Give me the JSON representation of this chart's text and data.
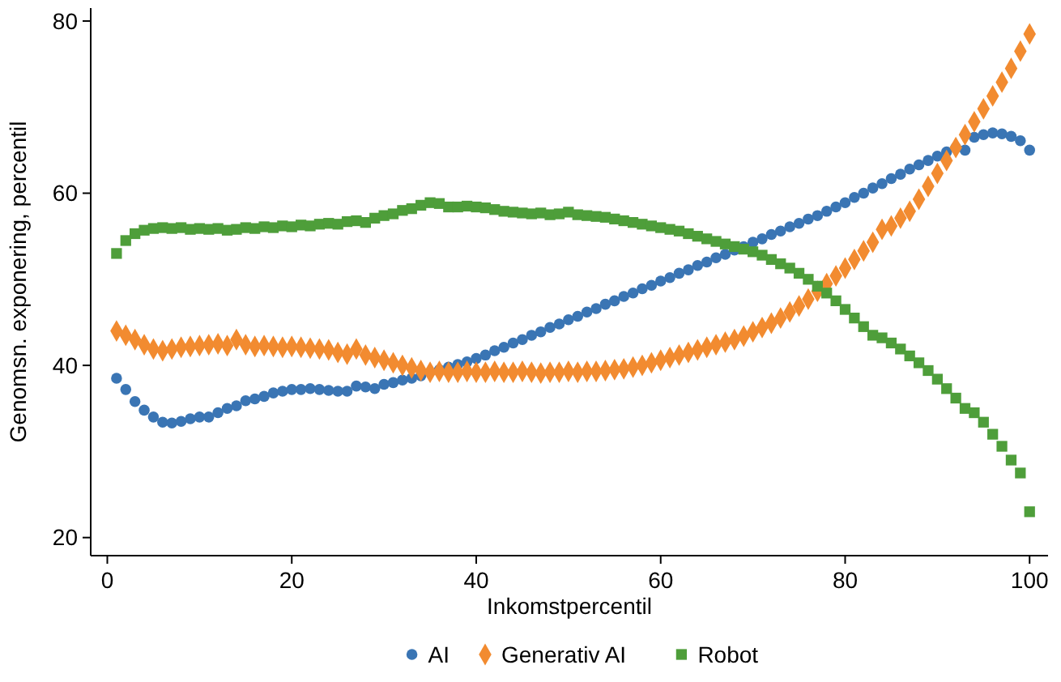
{
  "chart_data": {
    "type": "scatter",
    "xlabel": "Inkomstpercentil",
    "ylabel": "Genomsn. exponering, percentil",
    "x": [
      1,
      2,
      3,
      4,
      5,
      6,
      7,
      8,
      9,
      10,
      11,
      12,
      13,
      14,
      15,
      16,
      17,
      18,
      19,
      20,
      21,
      22,
      23,
      24,
      25,
      26,
      27,
      28,
      29,
      30,
      31,
      32,
      33,
      34,
      35,
      36,
      37,
      38,
      39,
      40,
      41,
      42,
      43,
      44,
      45,
      46,
      47,
      48,
      49,
      50,
      51,
      52,
      53,
      54,
      55,
      56,
      57,
      58,
      59,
      60,
      61,
      62,
      63,
      64,
      65,
      66,
      67,
      68,
      69,
      70,
      71,
      72,
      73,
      74,
      75,
      76,
      77,
      78,
      79,
      80,
      81,
      82,
      83,
      84,
      85,
      86,
      87,
      88,
      89,
      90,
      91,
      92,
      93,
      94,
      95,
      96,
      97,
      98,
      99,
      100
    ],
    "xlim": [
      -1.8,
      102
    ],
    "xticks": [
      0,
      20,
      40,
      60,
      80,
      100
    ],
    "ylim": [
      17.9,
      81.5
    ],
    "yticks": [
      20,
      40,
      60,
      80
    ],
    "grid": false,
    "legend": "bottom",
    "series": [
      {
        "name": "AI",
        "color": "#3a75b4",
        "marker": "circle",
        "values": [
          38.5,
          37.2,
          35.8,
          34.8,
          34.0,
          33.4,
          33.3,
          33.5,
          33.8,
          34.0,
          34.0,
          34.5,
          35.0,
          35.3,
          35.9,
          36.1,
          36.4,
          36.8,
          37.0,
          37.2,
          37.2,
          37.3,
          37.2,
          37.1,
          37.0,
          37.0,
          37.6,
          37.5,
          37.3,
          37.8,
          38.0,
          38.3,
          38.5,
          38.8,
          null,
          39.5,
          39.8,
          40.1,
          40.4,
          40.8,
          41.2,
          41.7,
          42.1,
          42.6,
          43.0,
          43.5,
          43.9,
          44.4,
          44.8,
          45.3,
          45.7,
          46.2,
          46.6,
          47.1,
          47.5,
          48.0,
          48.4,
          48.9,
          49.3,
          49.8,
          50.2,
          50.7,
          51.1,
          51.6,
          52.0,
          52.5,
          52.9,
          53.4,
          53.8,
          54.3,
          54.7,
          55.2,
          55.6,
          56.1,
          56.5,
          57.0,
          57.4,
          57.9,
          58.4,
          58.9,
          59.5,
          60.0,
          60.6,
          61.1,
          61.7,
          62.2,
          62.8,
          63.3,
          63.8,
          64.3,
          64.8,
          65.3,
          65.0,
          66.5,
          66.8,
          67.0,
          66.9,
          66.6,
          66.1,
          65.0
        ]
      },
      {
        "name": "Generativ AI",
        "color": "#f28b30",
        "marker": "diamond",
        "values": [
          44.0,
          43.5,
          43.0,
          42.4,
          41.9,
          41.7,
          41.9,
          42.1,
          42.2,
          42.3,
          42.4,
          42.5,
          42.3,
          43.0,
          42.4,
          42.2,
          42.3,
          42.2,
          42.1,
          42.2,
          42.1,
          42.0,
          41.9,
          41.8,
          41.5,
          41.3,
          41.9,
          41.2,
          40.9,
          40.6,
          40.3,
          40.0,
          39.7,
          39.4,
          39.2,
          39.3,
          39.2,
          39.2,
          39.3,
          39.2,
          39.2,
          39.3,
          39.2,
          39.2,
          39.3,
          39.2,
          39.1,
          39.2,
          39.2,
          39.3,
          39.2,
          39.3,
          39.3,
          39.4,
          39.5,
          39.6,
          39.8,
          40.0,
          40.3,
          40.6,
          40.9,
          41.2,
          41.5,
          41.8,
          42.1,
          42.4,
          42.7,
          43.0,
          43.4,
          43.9,
          44.4,
          44.9,
          45.5,
          46.2,
          46.9,
          47.7,
          48.6,
          49.5,
          50.4,
          51.3,
          52.3,
          53.3,
          54.3,
          55.8,
          56.2,
          57.1,
          57.9,
          59.3,
          60.8,
          62.3,
          63.8,
          65.3,
          66.8,
          68.3,
          69.8,
          71.3,
          72.9,
          74.5,
          76.5,
          78.5
        ]
      },
      {
        "name": "Robot",
        "color": "#4e9e3a",
        "marker": "square",
        "values": [
          53.0,
          54.5,
          55.3,
          55.7,
          55.9,
          56.0,
          55.9,
          56.0,
          55.8,
          55.9,
          55.8,
          55.9,
          55.7,
          55.8,
          56.0,
          55.9,
          56.1,
          56.0,
          56.2,
          56.1,
          56.3,
          56.2,
          56.4,
          56.5,
          56.4,
          56.7,
          56.8,
          56.6,
          57.1,
          57.4,
          57.6,
          58.0,
          58.2,
          58.6,
          58.9,
          58.8,
          58.4,
          58.4,
          58.5,
          58.4,
          58.3,
          58.1,
          57.9,
          57.8,
          57.7,
          57.6,
          57.7,
          57.5,
          57.6,
          57.8,
          57.5,
          57.4,
          57.3,
          57.2,
          57.0,
          56.8,
          56.6,
          56.4,
          56.2,
          56.0,
          55.8,
          55.6,
          55.3,
          55.0,
          54.7,
          54.4,
          54.1,
          53.8,
          53.5,
          53.2,
          52.8,
          52.3,
          51.8,
          51.3,
          50.7,
          50.0,
          49.2,
          48.4,
          47.5,
          46.5,
          45.5,
          44.5,
          43.5,
          43.2,
          42.6,
          41.9,
          41.1,
          40.3,
          39.4,
          38.4,
          37.3,
          36.2,
          35.0,
          34.5,
          33.4,
          32.0,
          30.6,
          29.0,
          27.5,
          23.0
        ]
      }
    ]
  }
}
